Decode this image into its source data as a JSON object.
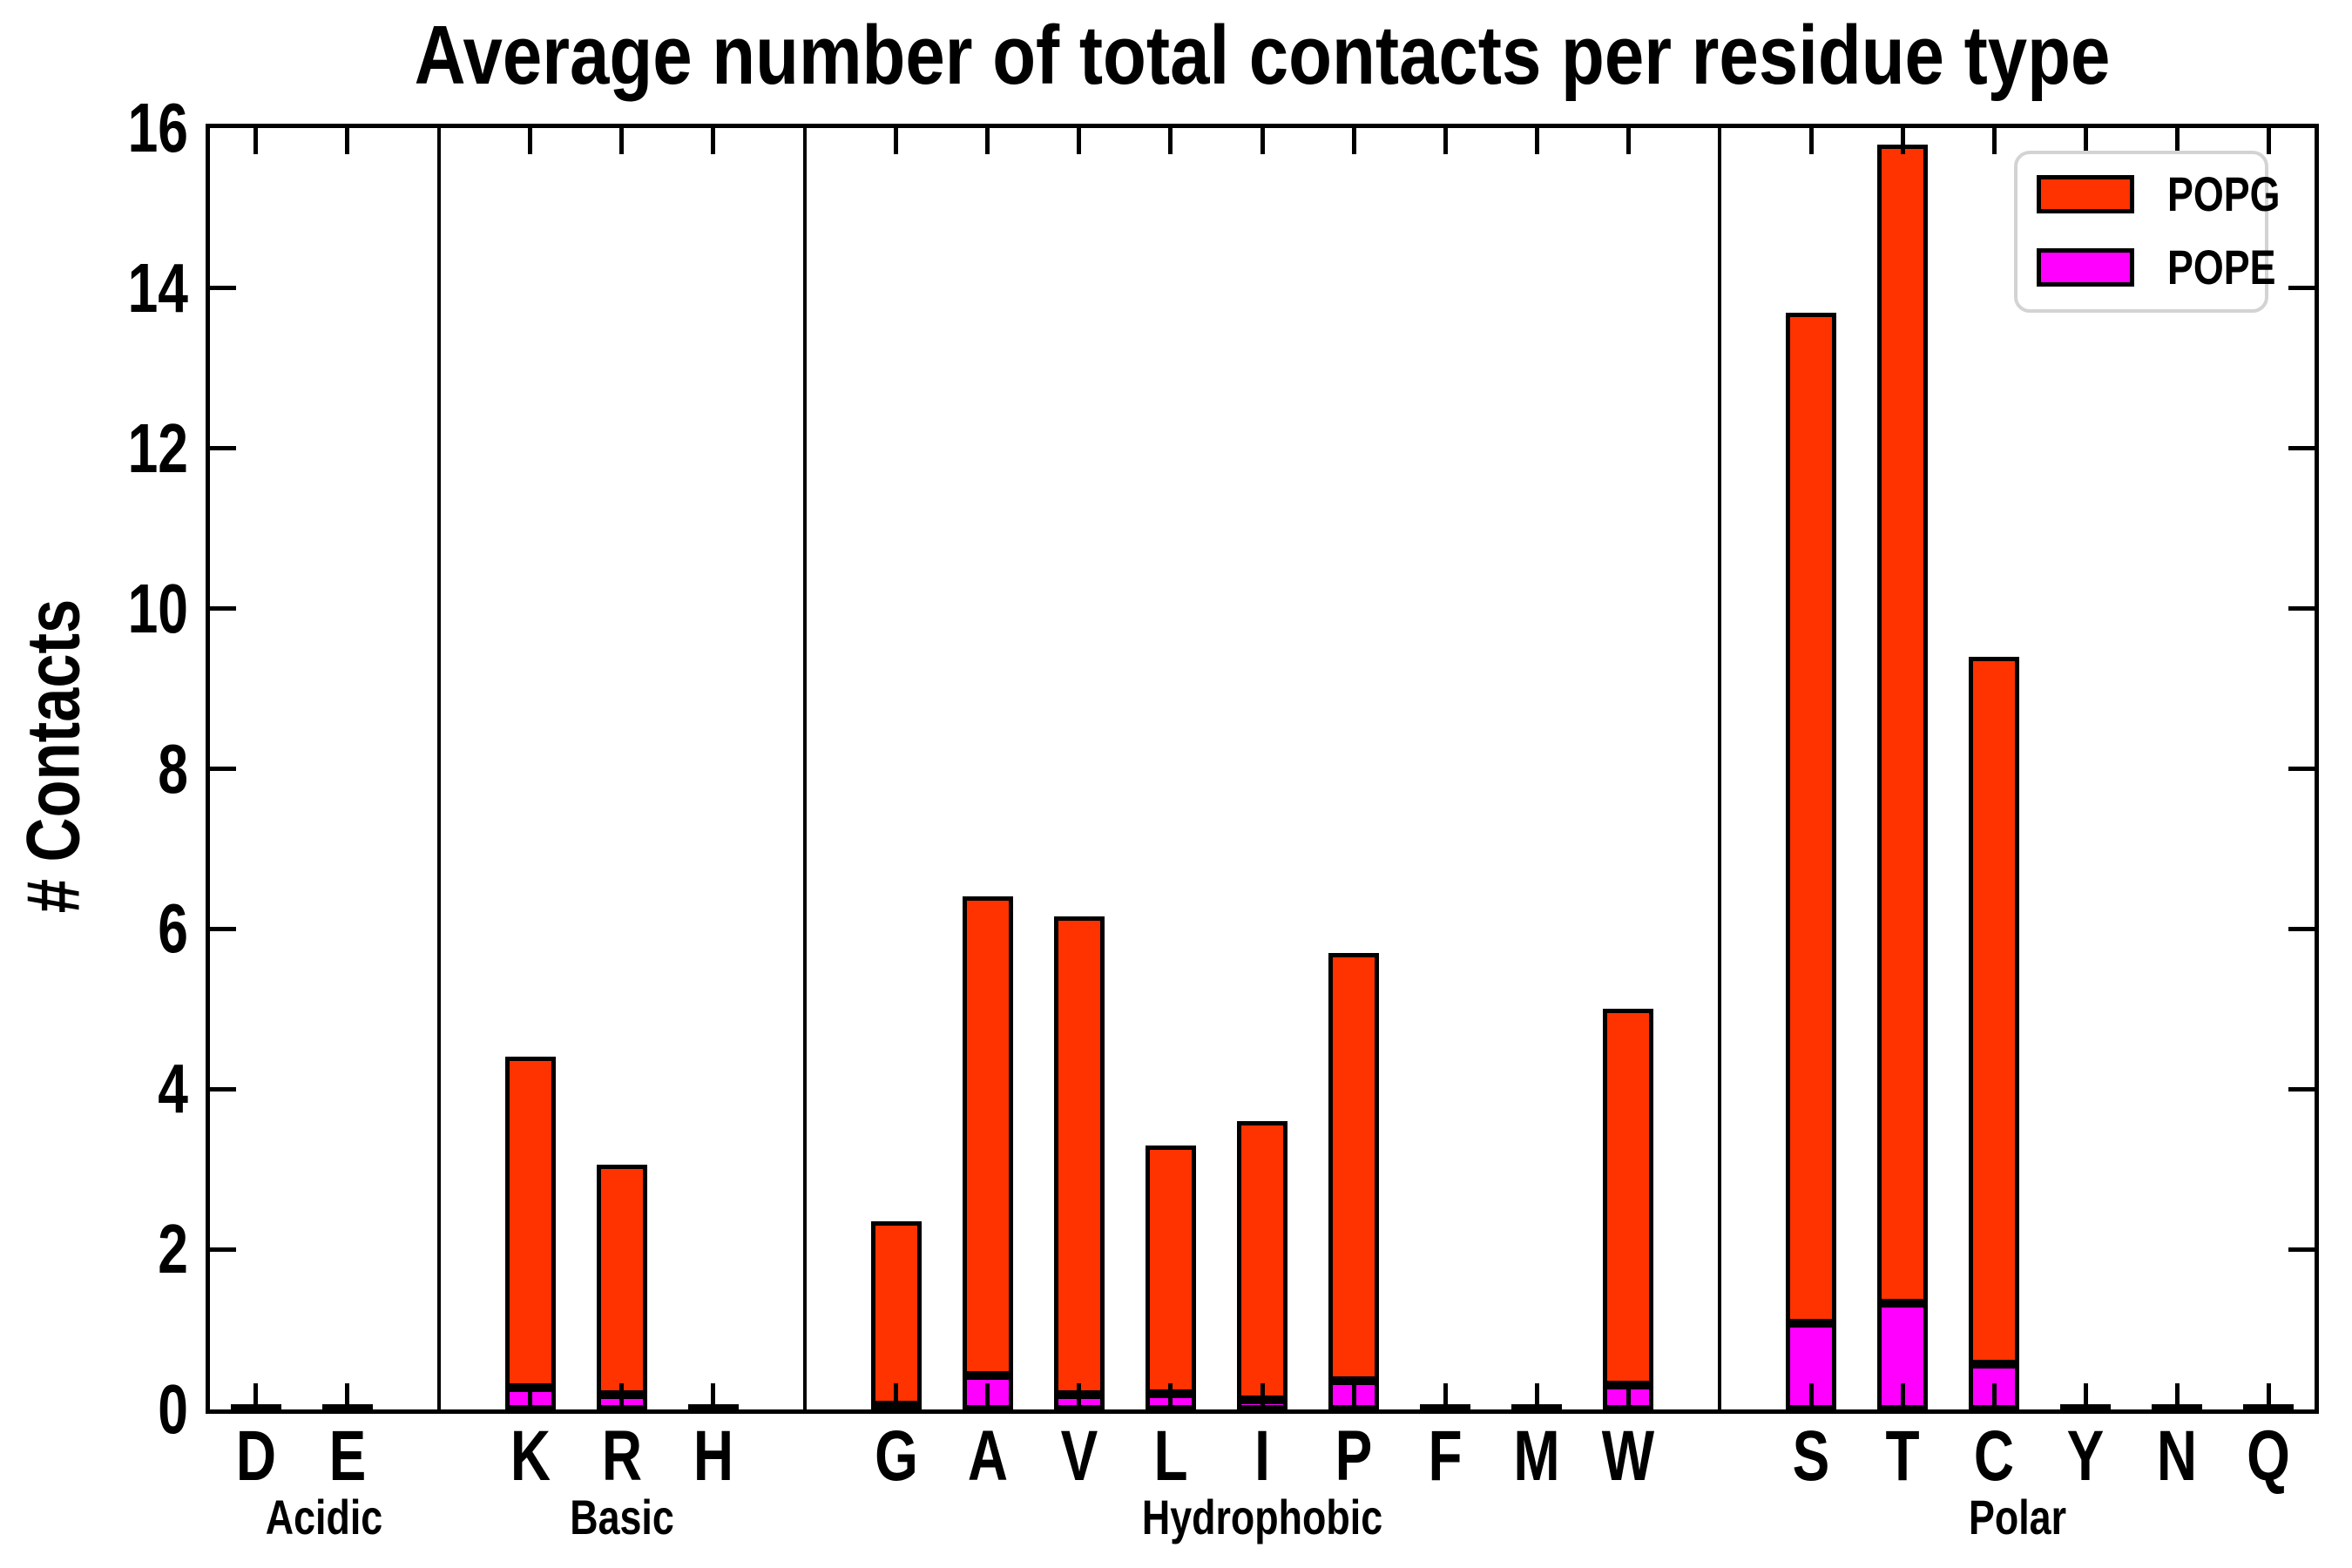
{
  "title": "Average number of total contacts per residue type",
  "y_axis": {
    "label": "# Contacts",
    "min": 0,
    "max": 16,
    "tick_step": 2,
    "tick_labels": [
      "0",
      "2",
      "4",
      "6",
      "8",
      "10",
      "12",
      "14",
      "16"
    ]
  },
  "legend": {
    "items": [
      {
        "label": "POPG",
        "color": "#FF3300"
      },
      {
        "label": "POPE",
        "color": "#FF00FF"
      }
    ]
  },
  "colors": {
    "popg": "#FF3300",
    "pope": "#FF00FF",
    "bar_edge": "#000000",
    "axis": "#000000",
    "legend_border": "#D3D3D3",
    "background": "#FFFFFF"
  },
  "chart_data": {
    "type": "bar",
    "stacked": true,
    "title": "Average number of total contacts per residue type",
    "ylabel": "# Contacts",
    "ylim": [
      0,
      16
    ],
    "yticks": [
      0,
      2,
      4,
      6,
      8,
      10,
      12,
      14,
      16
    ],
    "grid": false,
    "legend_position": "upper right",
    "series_names": [
      "POPG",
      "POPE"
    ],
    "stack_order_bottom_to_top": [
      "POPE",
      "POPG"
    ],
    "groups": [
      {
        "label": "Acidic",
        "residues": [
          {
            "label": "D",
            "POPE": 0.0,
            "POPG": 0.03,
            "total": 0.03
          },
          {
            "label": "E",
            "POPE": 0.0,
            "POPG": 0.03,
            "total": 0.03
          }
        ]
      },
      {
        "label": "Basic",
        "residues": [
          {
            "label": "K",
            "POPE": 0.27,
            "POPG": 4.13,
            "total": 4.4
          },
          {
            "label": "R",
            "POPE": 0.18,
            "POPG": 2.87,
            "total": 3.05
          },
          {
            "label": "H",
            "POPE": 0.0,
            "POPG": 0.03,
            "total": 0.03
          }
        ]
      },
      {
        "label": "Hydrophobic",
        "residues": [
          {
            "label": "G",
            "POPE": 0.05,
            "POPG": 2.3,
            "total": 2.35
          },
          {
            "label": "A",
            "POPE": 0.42,
            "POPG": 5.98,
            "total": 6.4
          },
          {
            "label": "V",
            "POPE": 0.18,
            "POPG": 5.97,
            "total": 6.15
          },
          {
            "label": "L",
            "POPE": 0.2,
            "POPG": 3.1,
            "total": 3.3
          },
          {
            "label": "I",
            "POPE": 0.12,
            "POPG": 3.48,
            "total": 3.6
          },
          {
            "label": "P",
            "POPE": 0.36,
            "POPG": 5.34,
            "total": 5.7
          },
          {
            "label": "F",
            "POPE": 0.0,
            "POPG": 0.03,
            "total": 0.03
          },
          {
            "label": "M",
            "POPE": 0.0,
            "POPG": 0.03,
            "total": 0.03
          },
          {
            "label": "W",
            "POPE": 0.3,
            "POPG": 4.7,
            "total": 5.0
          }
        ]
      },
      {
        "label": "Polar",
        "residues": [
          {
            "label": "S",
            "POPE": 1.08,
            "POPG": 12.62,
            "total": 13.7
          },
          {
            "label": "T",
            "POPE": 1.33,
            "POPG": 14.47,
            "total": 15.8
          },
          {
            "label": "C",
            "POPE": 0.57,
            "POPG": 8.83,
            "total": 9.4
          },
          {
            "label": "Y",
            "POPE": 0.0,
            "POPG": 0.03,
            "total": 0.03
          },
          {
            "label": "N",
            "POPE": 0.0,
            "POPG": 0.03,
            "total": 0.03
          },
          {
            "label": "Q",
            "POPE": 0.0,
            "POPG": 0.03,
            "total": 0.03
          }
        ]
      }
    ]
  }
}
